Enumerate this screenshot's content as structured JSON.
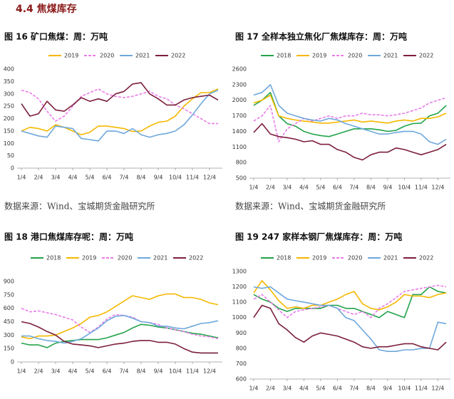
{
  "heading": "4.4 焦煤库存",
  "chart_data": [
    {
      "type": "line",
      "title": "图 16 矿口焦煤：周：万吨",
      "source": "数据来源：Wind、宝城期货金融研究所",
      "categories": [
        "1/4",
        null,
        "2/4",
        null,
        "3/4",
        null,
        "4/4",
        null,
        "5/4",
        null,
        "6/4",
        null,
        "7/4",
        null,
        "8/4",
        null,
        "9/4",
        null,
        "10/4",
        null,
        "11/4",
        null,
        "12/4",
        null
      ],
      "ylim": [
        0,
        400
      ],
      "yticks": [
        0,
        50,
        100,
        150,
        200,
        250,
        300,
        350,
        400
      ],
      "series": [
        {
          "name": "2019",
          "color": "#f5b800",
          "values": [
            150,
            165,
            160,
            150,
            175,
            165,
            150,
            135,
            145,
            170,
            170,
            165,
            160,
            148,
            150,
            170,
            185,
            190,
            210,
            250,
            280,
            305,
            305,
            320
          ]
        },
        {
          "name": "2020",
          "color": "#e87de8",
          "dashed": true,
          "values": [
            315,
            305,
            280,
            230,
            190,
            210,
            250,
            290,
            305,
            320,
            300,
            290,
            285,
            290,
            300,
            310,
            290,
            280,
            255,
            240,
            220,
            200,
            180,
            180
          ]
        },
        {
          "name": "2021",
          "color": "#6fa8dc",
          "values": [
            150,
            140,
            130,
            125,
            170,
            165,
            160,
            120,
            115,
            110,
            150,
            150,
            140,
            160,
            135,
            125,
            135,
            140,
            150,
            175,
            215,
            260,
            300,
            315
          ]
        },
        {
          "name": "2022",
          "color": "#7b1f3a",
          "values": [
            260,
            210,
            220,
            270,
            235,
            230,
            255,
            285,
            270,
            280,
            270,
            300,
            310,
            340,
            345,
            300,
            280,
            255,
            255,
            275,
            285,
            290,
            295,
            275
          ]
        }
      ]
    },
    {
      "type": "line",
      "title": "图 17 全样本独立焦化厂焦煤库存：周：万吨",
      "source": "数据来源：Wind、宝城期货金融研究所",
      "categories": [
        "1/4",
        null,
        "2/4",
        null,
        "3/4",
        null,
        "4/4",
        null,
        "5/4",
        null,
        "6/4",
        null,
        "7/4",
        null,
        "8/4",
        null,
        "9/4",
        null,
        "10/4",
        null,
        "11/4",
        null,
        "12/4",
        null
      ],
      "ylim": [
        500,
        2600
      ],
      "yticks": [
        500,
        800,
        1100,
        1400,
        1700,
        2000,
        2300,
        2600
      ],
      "series": [
        {
          "name": "2018",
          "color": "#22a34a",
          "values": [
            1900,
            2000,
            2150,
            1700,
            1550,
            1500,
            1400,
            1350,
            1320,
            1300,
            1350,
            1400,
            1450,
            1450,
            1450,
            1430,
            1400,
            1420,
            1500,
            1550,
            1560,
            1700,
            1750,
            1900
          ]
        },
        {
          "name": "2019",
          "color": "#f5b800",
          "values": [
            1950,
            2000,
            2100,
            1700,
            1650,
            1620,
            1600,
            1580,
            1560,
            1560,
            1580,
            1600,
            1620,
            1580,
            1600,
            1580,
            1560,
            1600,
            1620,
            1600,
            1650,
            1650,
            1680,
            1750
          ]
        },
        {
          "name": "2020",
          "color": "#e87de8",
          "dashed": true,
          "values": [
            1600,
            1700,
            1900,
            1200,
            1450,
            1550,
            1650,
            1600,
            1650,
            1700,
            1650,
            1700,
            1700,
            1750,
            1720,
            1720,
            1700,
            1720,
            1750,
            1800,
            1850,
            1950,
            2000,
            2050
          ]
        },
        {
          "name": "2021",
          "color": "#6fa8dc",
          "values": [
            2100,
            2150,
            2300,
            1900,
            1750,
            1700,
            1650,
            1620,
            1600,
            1650,
            1620,
            1550,
            1500,
            1450,
            1400,
            1350,
            1350,
            1380,
            1400,
            1400,
            1350,
            1200,
            1150,
            1250
          ]
        },
        {
          "name": "2022",
          "color": "#7b1f3a",
          "values": [
            1380,
            1550,
            1350,
            1300,
            1280,
            1250,
            1200,
            1220,
            1150,
            1150,
            1050,
            1000,
            900,
            850,
            950,
            1000,
            1000,
            1080,
            1050,
            1000,
            950,
            1000,
            1050,
            1150
          ]
        }
      ]
    },
    {
      "type": "line",
      "title": "图 18 港口焦煤库存呢：周：万吨",
      "categories": [
        "1/4",
        null,
        "2/4",
        null,
        "3/4",
        null,
        "4/4",
        null,
        "5/4",
        null,
        "6/4",
        null,
        "7/4",
        null,
        "8/4",
        null,
        "9/4",
        null,
        "10/4",
        null,
        "11/4",
        null,
        "12/4",
        null
      ],
      "ylim": [
        0,
        900
      ],
      "yticks": [
        0,
        150,
        300,
        450,
        600,
        750,
        900
      ],
      "series": [
        {
          "name": "2018",
          "color": "#22a34a",
          "values": [
            210,
            190,
            190,
            160,
            210,
            230,
            240,
            250,
            250,
            250,
            270,
            300,
            330,
            380,
            420,
            410,
            390,
            380,
            360,
            340,
            320,
            310,
            290,
            270
          ]
        },
        {
          "name": "2019",
          "color": "#f5b800",
          "values": [
            280,
            260,
            290,
            290,
            300,
            340,
            380,
            430,
            500,
            520,
            560,
            620,
            680,
            740,
            720,
            700,
            740,
            760,
            760,
            720,
            720,
            700,
            660,
            640
          ]
        },
        {
          "name": "2020",
          "color": "#e87de8",
          "dashed": true,
          "values": [
            600,
            560,
            570,
            550,
            530,
            500,
            470,
            390,
            330,
            390,
            480,
            530,
            520,
            500,
            450,
            440,
            420,
            380,
            360,
            340,
            310,
            290,
            280,
            260
          ]
        },
        {
          "name": "2021",
          "color": "#6fa8dc",
          "values": [
            290,
            290,
            260,
            240,
            230,
            210,
            230,
            260,
            320,
            380,
            460,
            510,
            520,
            490,
            450,
            440,
            400,
            400,
            380,
            370,
            400,
            430,
            440,
            460
          ]
        },
        {
          "name": "2022",
          "color": "#7b1f3a",
          "values": [
            450,
            430,
            390,
            340,
            300,
            230,
            200,
            190,
            180,
            160,
            180,
            200,
            210,
            230,
            240,
            240,
            220,
            220,
            200,
            150,
            110,
            100,
            100,
            100
          ]
        }
      ]
    },
    {
      "type": "line",
      "title": "图 19 247 家样本钢厂焦煤库存：周：万吨",
      "categories": [
        "1/4",
        null,
        "2/4",
        null,
        "3/4",
        null,
        "4/4",
        null,
        "5/4",
        null,
        "6/4",
        null,
        "7/4",
        null,
        "8/4",
        null,
        "9/4",
        null,
        "10/4",
        null,
        "11/4",
        null,
        "12/4",
        null
      ],
      "ylim": [
        600,
        1300
      ],
      "yticks": [
        600,
        700,
        800,
        900,
        1000,
        1100,
        1200,
        1300
      ],
      "series": [
        {
          "name": "2018",
          "color": "#22a34a",
          "values": [
            1150,
            1120,
            1100,
            1060,
            1040,
            1060,
            1060,
            1060,
            1060,
            1080,
            1080,
            1060,
            1060,
            1040,
            1020,
            1000,
            1040,
            1020,
            1000,
            1150,
            1150,
            1200,
            1170,
            1160
          ]
        },
        {
          "name": "2019",
          "color": "#f5b800",
          "values": [
            1160,
            1240,
            1180,
            1110,
            1060,
            1070,
            1060,
            1080,
            1080,
            1100,
            1120,
            1150,
            1170,
            1090,
            1060,
            1050,
            1070,
            1100,
            1150,
            1140,
            1140,
            1130,
            1150,
            1160
          ]
        },
        {
          "name": "2020",
          "color": "#e87de8",
          "dashed": true,
          "values": [
            1120,
            1150,
            1100,
            1050,
            1000,
            1040,
            1050,
            1060,
            1070,
            1080,
            1060,
            1040,
            1020,
            1040,
            1000,
            1060,
            1090,
            1130,
            1170,
            1180,
            1190,
            1200,
            1210,
            1200
          ]
        },
        {
          "name": "2021",
          "color": "#6fa8dc",
          "values": [
            1200,
            1190,
            1200,
            1160,
            1120,
            1110,
            1100,
            1090,
            1080,
            1080,
            1060,
            1000,
            980,
            920,
            860,
            790,
            780,
            780,
            790,
            790,
            800,
            800,
            970,
            960
          ]
        },
        {
          "name": "2022",
          "color": "#7b1f3a",
          "values": [
            1000,
            1080,
            1060,
            960,
            920,
            870,
            840,
            880,
            900,
            890,
            880,
            860,
            840,
            810,
            800,
            810,
            810,
            820,
            830,
            830,
            810,
            800,
            790,
            840
          ]
        }
      ]
    }
  ]
}
